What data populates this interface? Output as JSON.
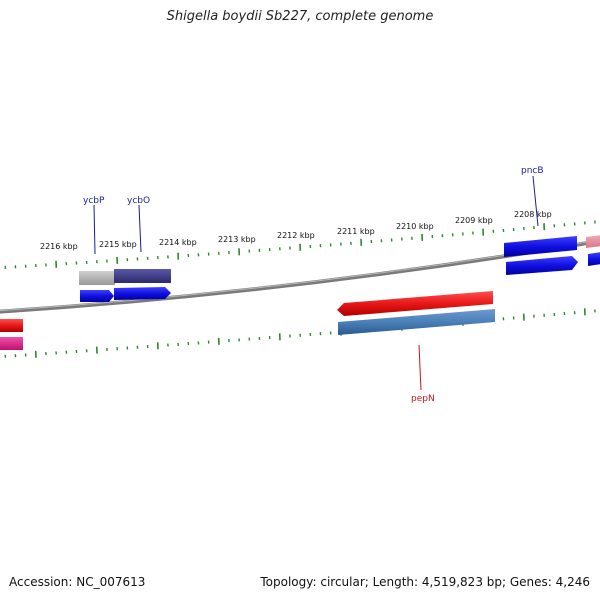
{
  "title": "Shigella boydii Sb227, complete genome",
  "accession": "Accession: NC_007613",
  "topology": "Topology: circular; Length: 4,519,823 bp; Genes: 4,246",
  "scale_labels": [
    "2216 kbp",
    "2215 kbp",
    "2214 kbp",
    "2213 kbp",
    "2212 kbp",
    "2211 kbp",
    "2210 kbp",
    "2209 kbp",
    "2208 kbp"
  ],
  "gene_labels": {
    "ycbP": "ycbP",
    "ycbO": "ycbO",
    "pncB": "pncB",
    "pepN": "pepN"
  },
  "colors": {
    "forward_cds": "#1010e0",
    "reverse_cds": "#e81818",
    "cog_blue": "#4a80b8",
    "cog_purple": "#3c3a80",
    "cog_gray": "#b0b0b0",
    "cog_pink": "#e890a0",
    "magenta": "#e0208a",
    "backbone": "#7a7a7a",
    "tick": "#2a8a2a",
    "forward_label": "#1a1aa0",
    "reverse_label": "#c01818"
  }
}
